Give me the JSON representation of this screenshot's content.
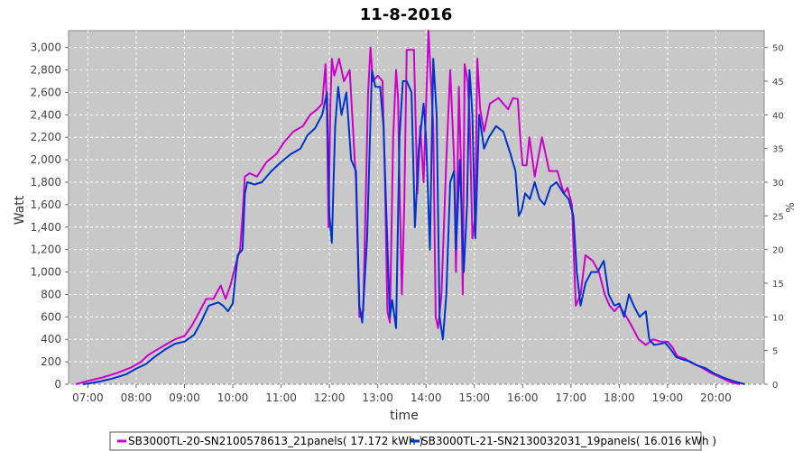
{
  "chart_data": {
    "type": "line",
    "title": "11-8-2016",
    "xlabel": "time",
    "ylabel": "Watt",
    "y2label": "%",
    "xlim": [
      6.6,
      21.0
    ],
    "ylim": [
      0,
      3150
    ],
    "y2lim": [
      0,
      52.5
    ],
    "x_ticks": [
      {
        "v": 7,
        "label": "07:00"
      },
      {
        "v": 8,
        "label": "08:00"
      },
      {
        "v": 9,
        "label": "09:00"
      },
      {
        "v": 10,
        "label": "10:00"
      },
      {
        "v": 11,
        "label": "11:00"
      },
      {
        "v": 12,
        "label": "12:00"
      },
      {
        "v": 13,
        "label": "13:00"
      },
      {
        "v": 14,
        "label": "14:00"
      },
      {
        "v": 15,
        "label": "15:00"
      },
      {
        "v": 16,
        "label": "16:00"
      },
      {
        "v": 17,
        "label": "17:00"
      },
      {
        "v": 18,
        "label": "18:00"
      },
      {
        "v": 19,
        "label": "19:00"
      },
      {
        "v": 20,
        "label": "20:00"
      }
    ],
    "y_ticks": [
      {
        "v": 0,
        "label": "0"
      },
      {
        "v": 200,
        "label": "200"
      },
      {
        "v": 400,
        "label": "400"
      },
      {
        "v": 600,
        "label": "600"
      },
      {
        "v": 800,
        "label": "800"
      },
      {
        "v": 1000,
        "label": "1,000"
      },
      {
        "v": 1200,
        "label": "1,200"
      },
      {
        "v": 1400,
        "label": "1,400"
      },
      {
        "v": 1600,
        "label": "1,600"
      },
      {
        "v": 1800,
        "label": "1,800"
      },
      {
        "v": 2000,
        "label": "2,000"
      },
      {
        "v": 2200,
        "label": "2,200"
      },
      {
        "v": 2400,
        "label": "2,400"
      },
      {
        "v": 2600,
        "label": "2,600"
      },
      {
        "v": 2800,
        "label": "2,800"
      },
      {
        "v": 3000,
        "label": "3,000"
      }
    ],
    "y2_ticks": [
      {
        "v": 0,
        "label": "0"
      },
      {
        "v": 5,
        "label": "5"
      },
      {
        "v": 10,
        "label": "10"
      },
      {
        "v": 15,
        "label": "15"
      },
      {
        "v": 20,
        "label": "20"
      },
      {
        "v": 25,
        "label": "25"
      },
      {
        "v": 30,
        "label": "30"
      },
      {
        "v": 35,
        "label": "35"
      },
      {
        "v": 40,
        "label": "40"
      },
      {
        "v": 45,
        "label": "45"
      },
      {
        "v": 50,
        "label": "50"
      }
    ],
    "grid": true,
    "legend_position": "bottom",
    "series": [
      {
        "name": "SB3000TL-20-SN2100578613_21panels( 17.172 kWh )",
        "color": "#cc00cc",
        "points": [
          [
            6.75,
            0
          ],
          [
            7.0,
            30
          ],
          [
            7.3,
            60
          ],
          [
            7.6,
            100
          ],
          [
            7.9,
            150
          ],
          [
            8.1,
            200
          ],
          [
            8.25,
            260
          ],
          [
            8.4,
            300
          ],
          [
            8.6,
            350
          ],
          [
            8.8,
            400
          ],
          [
            9.0,
            430
          ],
          [
            9.15,
            520
          ],
          [
            9.3,
            640
          ],
          [
            9.45,
            760
          ],
          [
            9.6,
            760
          ],
          [
            9.75,
            880
          ],
          [
            9.85,
            760
          ],
          [
            9.95,
            880
          ],
          [
            10.05,
            1050
          ],
          [
            10.15,
            1200
          ],
          [
            10.2,
            1500
          ],
          [
            10.25,
            1850
          ],
          [
            10.35,
            1880
          ],
          [
            10.5,
            1850
          ],
          [
            10.7,
            1980
          ],
          [
            10.9,
            2050
          ],
          [
            11.05,
            2150
          ],
          [
            11.25,
            2250
          ],
          [
            11.45,
            2300
          ],
          [
            11.6,
            2400
          ],
          [
            11.75,
            2450
          ],
          [
            11.85,
            2500
          ],
          [
            11.92,
            2850
          ],
          [
            11.95,
            2400
          ],
          [
            11.98,
            1400
          ],
          [
            12.02,
            2500
          ],
          [
            12.05,
            2900
          ],
          [
            12.1,
            2750
          ],
          [
            12.2,
            2900
          ],
          [
            12.3,
            2700
          ],
          [
            12.42,
            2800
          ],
          [
            12.55,
            1800
          ],
          [
            12.62,
            600
          ],
          [
            12.7,
            650
          ],
          [
            12.8,
            2600
          ],
          [
            12.85,
            3000
          ],
          [
            12.9,
            2700
          ],
          [
            13.0,
            2750
          ],
          [
            13.1,
            2700
          ],
          [
            13.15,
            1800
          ],
          [
            13.2,
            650
          ],
          [
            13.25,
            550
          ],
          [
            13.32,
            2200
          ],
          [
            13.38,
            2800
          ],
          [
            13.42,
            2550
          ],
          [
            13.45,
            1800
          ],
          [
            13.5,
            800
          ],
          [
            13.55,
            1600
          ],
          [
            13.6,
            2980
          ],
          [
            13.75,
            2980
          ],
          [
            13.82,
            1700
          ],
          [
            13.88,
            2300
          ],
          [
            13.95,
            1800
          ],
          [
            14.05,
            3150
          ],
          [
            14.15,
            2300
          ],
          [
            14.2,
            600
          ],
          [
            14.25,
            500
          ],
          [
            14.32,
            800
          ],
          [
            14.42,
            2000
          ],
          [
            14.5,
            2800
          ],
          [
            14.58,
            2000
          ],
          [
            14.62,
            1000
          ],
          [
            14.68,
            2650
          ],
          [
            14.72,
            2000
          ],
          [
            14.76,
            800
          ],
          [
            14.8,
            2850
          ],
          [
            14.86,
            2700
          ],
          [
            14.9,
            2400
          ],
          [
            14.96,
            1300
          ],
          [
            15.02,
            1500
          ],
          [
            15.06,
            2900
          ],
          [
            15.12,
            2450
          ],
          [
            15.2,
            2250
          ],
          [
            15.32,
            2500
          ],
          [
            15.5,
            2550
          ],
          [
            15.7,
            2450
          ],
          [
            15.8,
            2550
          ],
          [
            15.9,
            2540
          ],
          [
            15.95,
            2200
          ],
          [
            16.0,
            1950
          ],
          [
            16.08,
            1950
          ],
          [
            16.14,
            2200
          ],
          [
            16.25,
            1850
          ],
          [
            16.4,
            2200
          ],
          [
            16.55,
            1900
          ],
          [
            16.72,
            1900
          ],
          [
            16.85,
            1700
          ],
          [
            16.93,
            1750
          ],
          [
            17.02,
            1600
          ],
          [
            17.1,
            700
          ],
          [
            17.2,
            800
          ],
          [
            17.3,
            1150
          ],
          [
            17.45,
            1100
          ],
          [
            17.58,
            1000
          ],
          [
            17.7,
            800
          ],
          [
            17.8,
            700
          ],
          [
            17.9,
            650
          ],
          [
            18.0,
            700
          ],
          [
            18.15,
            600
          ],
          [
            18.28,
            500
          ],
          [
            18.4,
            400
          ],
          [
            18.55,
            350
          ],
          [
            18.7,
            400
          ],
          [
            18.85,
            380
          ],
          [
            19.0,
            380
          ],
          [
            19.1,
            330
          ],
          [
            19.2,
            250
          ],
          [
            19.35,
            230
          ],
          [
            19.5,
            190
          ],
          [
            19.7,
            150
          ],
          [
            19.9,
            100
          ],
          [
            20.1,
            60
          ],
          [
            20.3,
            20
          ],
          [
            20.5,
            0
          ]
        ]
      },
      {
        "name": "SB3000TL-21-SN2130032031_19panels( 16.016 kWh )",
        "color": "#0033cc",
        "points": [
          [
            6.9,
            0
          ],
          [
            7.2,
            20
          ],
          [
            7.5,
            50
          ],
          [
            7.8,
            90
          ],
          [
            8.0,
            140
          ],
          [
            8.2,
            180
          ],
          [
            8.4,
            250
          ],
          [
            8.6,
            310
          ],
          [
            8.8,
            360
          ],
          [
            9.0,
            380
          ],
          [
            9.2,
            440
          ],
          [
            9.35,
            560
          ],
          [
            9.5,
            700
          ],
          [
            9.7,
            730
          ],
          [
            9.8,
            700
          ],
          [
            9.9,
            650
          ],
          [
            10.0,
            720
          ],
          [
            10.1,
            1150
          ],
          [
            10.2,
            1200
          ],
          [
            10.25,
            1700
          ],
          [
            10.3,
            1800
          ],
          [
            10.45,
            1780
          ],
          [
            10.6,
            1800
          ],
          [
            10.8,
            1900
          ],
          [
            11.0,
            1980
          ],
          [
            11.2,
            2050
          ],
          [
            11.4,
            2100
          ],
          [
            11.55,
            2220
          ],
          [
            11.7,
            2280
          ],
          [
            11.85,
            2400
          ],
          [
            11.95,
            2600
          ],
          [
            12.0,
            1500
          ],
          [
            12.05,
            1260
          ],
          [
            12.12,
            2300
          ],
          [
            12.18,
            2650
          ],
          [
            12.25,
            2400
          ],
          [
            12.35,
            2600
          ],
          [
            12.45,
            2000
          ],
          [
            12.55,
            1900
          ],
          [
            12.62,
            700
          ],
          [
            12.68,
            550
          ],
          [
            12.78,
            1300
          ],
          [
            12.88,
            2800
          ],
          [
            12.95,
            2650
          ],
          [
            13.05,
            2650
          ],
          [
            13.12,
            2300
          ],
          [
            13.18,
            1500
          ],
          [
            13.25,
            600
          ],
          [
            13.3,
            750
          ],
          [
            13.38,
            500
          ],
          [
            13.45,
            2200
          ],
          [
            13.52,
            2700
          ],
          [
            13.6,
            2700
          ],
          [
            13.7,
            2600
          ],
          [
            13.77,
            1400
          ],
          [
            13.85,
            2100
          ],
          [
            13.95,
            2500
          ],
          [
            14.0,
            2200
          ],
          [
            14.08,
            1200
          ],
          [
            14.15,
            2900
          ],
          [
            14.22,
            2400
          ],
          [
            14.28,
            600
          ],
          [
            14.35,
            400
          ],
          [
            14.42,
            800
          ],
          [
            14.5,
            1800
          ],
          [
            14.58,
            1900
          ],
          [
            14.62,
            1200
          ],
          [
            14.7,
            2000
          ],
          [
            14.78,
            1000
          ],
          [
            14.85,
            1600
          ],
          [
            14.9,
            2800
          ],
          [
            14.96,
            2400
          ],
          [
            15.02,
            1300
          ],
          [
            15.1,
            2400
          ],
          [
            15.2,
            2100
          ],
          [
            15.3,
            2200
          ],
          [
            15.45,
            2300
          ],
          [
            15.6,
            2250
          ],
          [
            15.75,
            2050
          ],
          [
            15.85,
            1900
          ],
          [
            15.92,
            1500
          ],
          [
            15.98,
            1550
          ],
          [
            16.05,
            1700
          ],
          [
            16.15,
            1650
          ],
          [
            16.25,
            1800
          ],
          [
            16.35,
            1650
          ],
          [
            16.45,
            1600
          ],
          [
            16.58,
            1760
          ],
          [
            16.7,
            1800
          ],
          [
            16.85,
            1700
          ],
          [
            16.95,
            1650
          ],
          [
            17.05,
            1500
          ],
          [
            17.12,
            1000
          ],
          [
            17.2,
            700
          ],
          [
            17.3,
            900
          ],
          [
            17.42,
            1000
          ],
          [
            17.55,
            1000
          ],
          [
            17.68,
            1100
          ],
          [
            17.78,
            800
          ],
          [
            17.9,
            700
          ],
          [
            18.0,
            720
          ],
          [
            18.1,
            600
          ],
          [
            18.2,
            800
          ],
          [
            18.3,
            700
          ],
          [
            18.42,
            600
          ],
          [
            18.55,
            650
          ],
          [
            18.62,
            400
          ],
          [
            18.72,
            350
          ],
          [
            18.85,
            360
          ],
          [
            18.95,
            370
          ],
          [
            19.05,
            320
          ],
          [
            19.18,
            240
          ],
          [
            19.32,
            220
          ],
          [
            19.48,
            200
          ],
          [
            19.6,
            170
          ],
          [
            19.8,
            140
          ],
          [
            19.95,
            100
          ],
          [
            20.15,
            60
          ],
          [
            20.35,
            30
          ],
          [
            20.6,
            0
          ]
        ]
      }
    ]
  }
}
